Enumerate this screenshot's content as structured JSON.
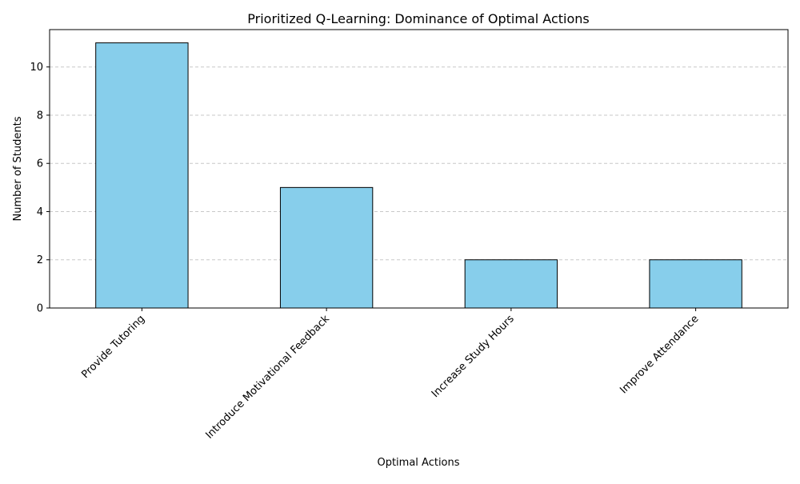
{
  "chart_data": {
    "type": "bar",
    "title": "Prioritized Q-Learning: Dominance of Optimal Actions",
    "xlabel": "Optimal Actions",
    "ylabel": "Number of Students",
    "categories": [
      "Provide Tutoring",
      "Introduce Motivational Feedback",
      "Increase Study Hours",
      "Improve Attendance"
    ],
    "values": [
      11,
      5,
      2,
      2
    ],
    "ylim": [
      0,
      11.55
    ],
    "yticks": [
      0,
      2,
      4,
      6,
      8,
      10
    ],
    "grid": "y-dashed",
    "x_tick_rotation": -45,
    "bar_color": "#87ceeb",
    "bar_edge_color": "#000000",
    "grid_color": "#c8c8c8"
  }
}
